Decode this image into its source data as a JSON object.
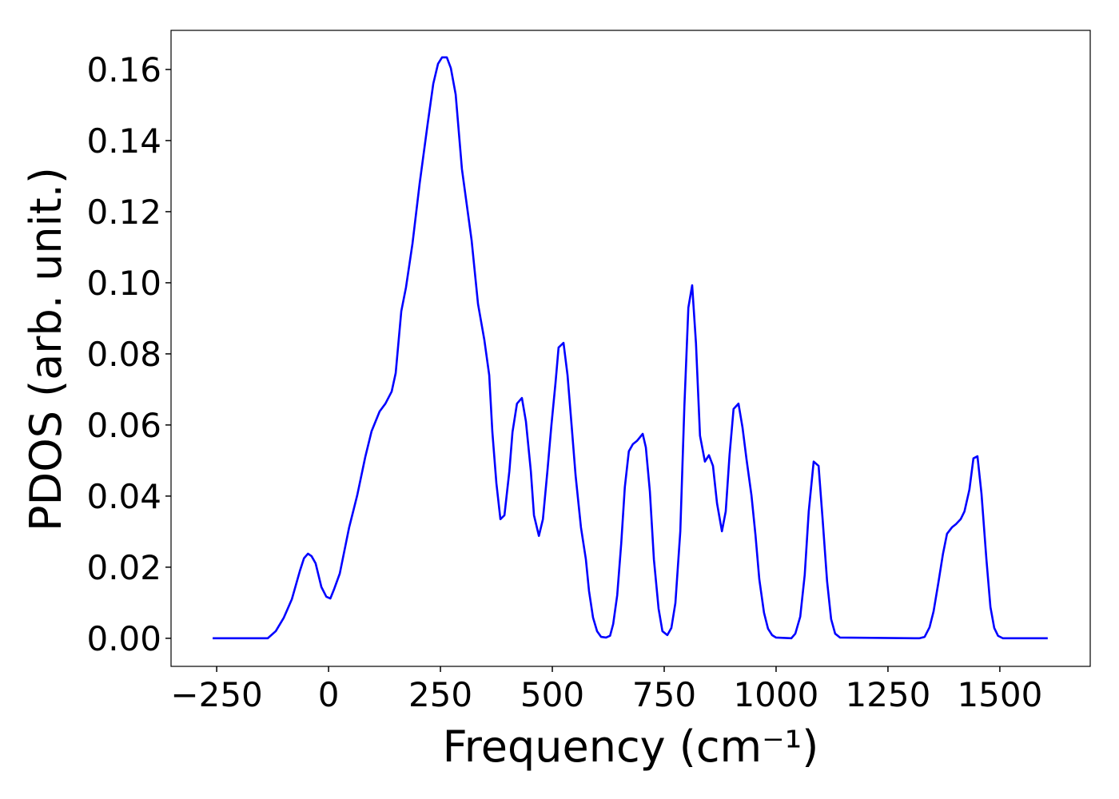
{
  "chart_data": {
    "type": "line",
    "xlabel": "Frequency (cm⁻¹)",
    "ylabel": "PDOS (arb. unit.)",
    "xlim": [
      -352,
      1702
    ],
    "ylim": [
      -0.0079,
      0.171
    ],
    "xticks": [
      {
        "value": -250,
        "label": "−250"
      },
      0,
      250,
      500,
      750,
      1000,
      1250,
      1500
    ],
    "yticks": [
      {
        "value": 0,
        "label": "0.00"
      },
      {
        "value": 0.02,
        "label": "0.02"
      },
      {
        "value": 0.04,
        "label": "0.04"
      },
      {
        "value": 0.06,
        "label": "0.06"
      },
      {
        "value": 0.08,
        "label": "0.08"
      },
      {
        "value": 0.1,
        "label": "0.10"
      },
      {
        "value": 0.12,
        "label": "0.12"
      },
      {
        "value": 0.14,
        "label": "0.14"
      },
      {
        "value": 0.16,
        "label": "0.16"
      }
    ],
    "grid": false,
    "series": [
      {
        "color": "#0000ff",
        "x": [
          -259,
          -136,
          -118,
          -100,
          -82,
          -64,
          -55,
          -46,
          -38,
          -29,
          -16,
          -5,
          4,
          12,
          25,
          46,
          64,
          82,
          96,
          114,
          127,
          141,
          150,
          162.5,
          173,
          187.5,
          203.6,
          221.4,
          234,
          244.6,
          253.6,
          264.3,
          273.2,
          284,
          298,
          319.6,
          334,
          348,
          359,
          366,
          375,
          384,
          393,
          404,
          411,
          421,
          432,
          441,
          452,
          459,
          470,
          479,
          489,
          498,
          507,
          514,
          525,
          534,
          543,
          552,
          564,
          575,
          582,
          591,
          600,
          609,
          620,
          629,
          636,
          645,
          654,
          662,
          671,
          680,
          689,
          702,
          709,
          718,
          727,
          737.5,
          746,
          757,
          766,
          775,
          786,
          795,
          804,
          812.5,
          821,
          830,
          841,
          850,
          859,
          868,
          879,
          887.5,
          896,
          905,
          916,
          925,
          934,
          945,
          954,
          962.5,
          973,
          982,
          991,
          1000,
          1034,
          1043,
          1054,
          1064,
          1073,
          1084,
          1095,
          1104,
          1114,
          1123,
          1132,
          1143,
          1320,
          1332,
          1343,
          1352,
          1362.5,
          1373,
          1382,
          1393,
          1402,
          1412.5,
          1421,
          1432,
          1441,
          1450,
          1459,
          1470,
          1479,
          1487.5,
          1496,
          1507,
          1607
        ],
        "values": [
          0,
          0,
          0.002,
          0.0058,
          0.011,
          0.019,
          0.0225,
          0.0238,
          0.0231,
          0.0211,
          0.0144,
          0.0117,
          0.0112,
          0.0137,
          0.0182,
          0.0312,
          0.0402,
          0.051,
          0.0582,
          0.0638,
          0.066,
          0.0694,
          0.0746,
          0.092,
          0.0987,
          0.111,
          0.128,
          0.1447,
          0.156,
          0.1616,
          0.1634,
          0.1634,
          0.1604,
          0.153,
          0.132,
          0.112,
          0.094,
          0.084,
          0.074,
          0.058,
          0.0436,
          0.0335,
          0.0346,
          0.047,
          0.058,
          0.066,
          0.0676,
          0.061,
          0.047,
          0.0346,
          0.0288,
          0.0335,
          0.047,
          0.06,
          0.0717,
          0.0818,
          0.0831,
          0.074,
          0.06,
          0.0458,
          0.0312,
          0.0222,
          0.0133,
          0.0058,
          0.002,
          0.0004,
          0.0002,
          0.0007,
          0.004,
          0.0121,
          0.0267,
          0.0425,
          0.0526,
          0.0546,
          0.0555,
          0.0575,
          0.0537,
          0.0413,
          0.0222,
          0.0083,
          0.002,
          0.0009,
          0.0029,
          0.0099,
          0.0301,
          0.065,
          0.093,
          0.0993,
          0.083,
          0.057,
          0.0497,
          0.0515,
          0.0485,
          0.038,
          0.0301,
          0.0357,
          0.0515,
          0.0645,
          0.066,
          0.0593,
          0.0503,
          0.0402,
          0.029,
          0.0166,
          0.0072,
          0.0027,
          0.0009,
          0.0002,
          0,
          0.0013,
          0.0061,
          0.0178,
          0.0357,
          0.0497,
          0.0485,
          0.0335,
          0.016,
          0.0054,
          0.0013,
          0.0002,
          0,
          0.0004,
          0.0031,
          0.0076,
          0.0155,
          0.0238,
          0.0294,
          0.0312,
          0.0321,
          0.0335,
          0.0357,
          0.0418,
          0.0506,
          0.0512,
          0.0407,
          0.0222,
          0.0088,
          0.0029,
          0.0007,
          0,
          0
        ]
      }
    ]
  }
}
